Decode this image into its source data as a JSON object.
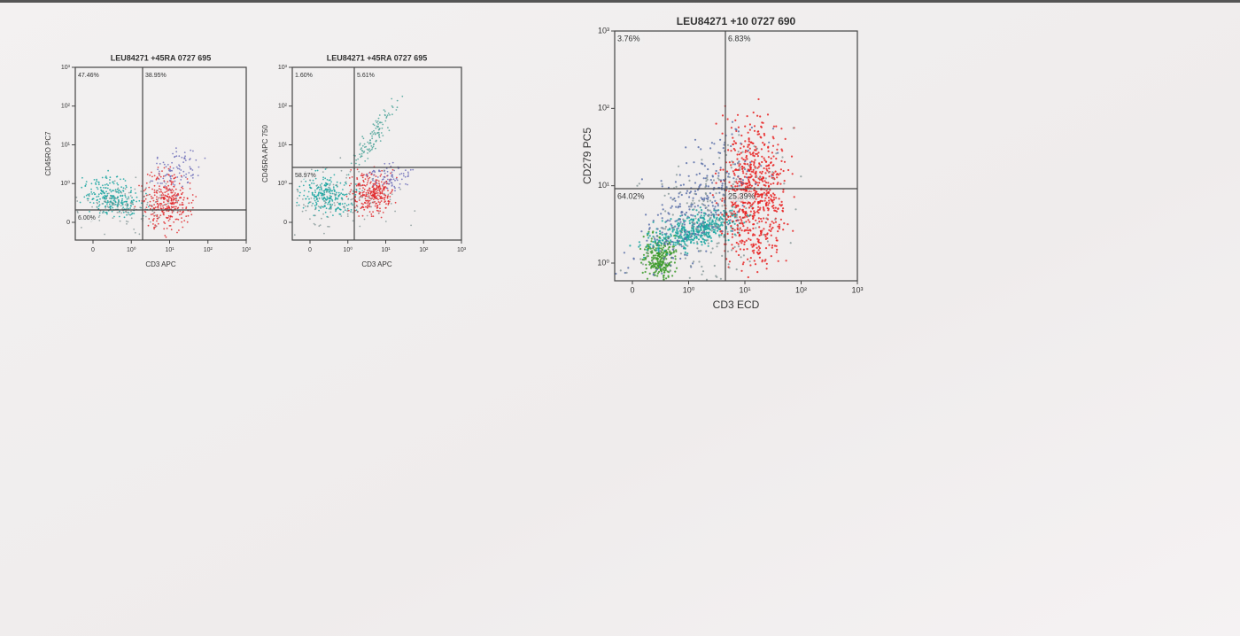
{
  "plots": [
    {
      "title": "LEU84271 +45RA 0727 695",
      "y_label": "CD45RO PC7",
      "x_label": "CD3 APC",
      "x_ticks": [
        "0",
        "10⁰",
        "10¹",
        "10²",
        "10³"
      ],
      "y_ticks": [
        "10³",
        "10²",
        "10¹",
        "10⁰",
        "0"
      ],
      "quadrants": {
        "top_left": "47.46%",
        "top_right": "38.95%",
        "bottom_left": "6.00%"
      }
    },
    {
      "title": "LEU84271 +45RA 0727 695",
      "y_label": "CD45RA APC 750",
      "x_label": "CD3 APC",
      "x_ticks": [
        "0",
        "10⁰",
        "10¹",
        "10²",
        "10³"
      ],
      "y_ticks": [
        "10³",
        "10²",
        "10¹",
        "10⁰",
        "0"
      ],
      "quadrants": {
        "top_left": "1.60%",
        "top_right": "5.61%",
        "bottom_left": "58.97%"
      }
    },
    {
      "title": "LEU84271 +10 0727 690",
      "y_label": "CD279 PC5",
      "x_label": "CD3 ECD",
      "x_ticks": [
        "0",
        "10⁰",
        "10¹",
        "10²",
        "10³"
      ],
      "y_ticks": [
        "10³",
        "10²",
        "10¹",
        "10⁰"
      ],
      "quadrants": {
        "top_left": "3.76%",
        "top_right": "6.83%",
        "bottom_left": "64.02%",
        "bottom_right": "25.39%"
      }
    }
  ]
}
